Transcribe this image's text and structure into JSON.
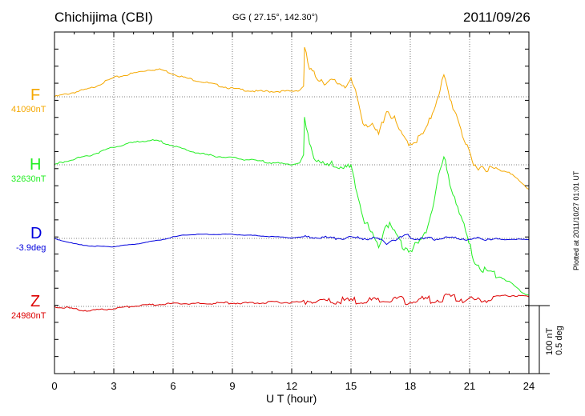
{
  "header": {
    "station": "Chichijima (CBI)",
    "coords": "GG ( 27.15°, 142.30°)",
    "date": "2011/09/26"
  },
  "scale": {
    "nt": "100 nT",
    "deg": "0.5 deg"
  },
  "plotted": "Plotted at 2011/10/27 01:01 UT",
  "chart_data": {
    "type": "line",
    "xlabel": "U T (hour)",
    "xlim": [
      0,
      24
    ],
    "xticks": [
      "0",
      "3",
      "6",
      "9",
      "12",
      "15",
      "18",
      "21",
      "24"
    ],
    "grid": true,
    "series": [
      {
        "name": "F",
        "baseline": "41090nT",
        "color": "#f5a800",
        "x": [
          0,
          0.6,
          1.2,
          1.8,
          2.4,
          3,
          3.6,
          4.2,
          4.8,
          5.4,
          6,
          6.6,
          7.2,
          7.8,
          8.4,
          9,
          9.6,
          10.2,
          10.8,
          11.4,
          12,
          12.4,
          12.6,
          12.65,
          12.9,
          13.2,
          13.5,
          13.8,
          14.1,
          14.4,
          14.7,
          15,
          15.3,
          15.6,
          16,
          16.4,
          16.8,
          17.2,
          17.6,
          18,
          18.4,
          18.8,
          19.2,
          19.5,
          19.7,
          20,
          20.4,
          20.8,
          21.2,
          21.6,
          22,
          22.5,
          23,
          23.5,
          24
        ],
        "values": [
          0,
          4,
          8,
          12,
          20,
          28,
          32,
          36,
          40,
          40,
          34,
          28,
          24,
          20,
          16,
          12,
          10,
          8,
          8,
          8,
          8,
          10,
          16,
          70,
          40,
          30,
          26,
          20,
          22,
          20,
          18,
          22,
          0,
          -36,
          -42,
          -56,
          -18,
          -34,
          -60,
          -68,
          -62,
          -50,
          -16,
          12,
          30,
          -4,
          -30,
          -70,
          -102,
          -102,
          -106,
          -108,
          -110,
          -124,
          -136
        ]
      },
      {
        "name": "H",
        "baseline": "32630nT",
        "color": "#22ee22",
        "x": [
          0,
          0.6,
          1.2,
          1.8,
          2.4,
          3,
          3.6,
          4.2,
          4.8,
          5.4,
          6,
          6.6,
          7.2,
          7.8,
          8.4,
          9,
          9.6,
          10.2,
          10.8,
          11.4,
          12,
          12.4,
          12.6,
          12.65,
          12.9,
          13.2,
          13.5,
          13.8,
          14.1,
          14.4,
          14.7,
          15,
          15.3,
          15.6,
          16,
          16.4,
          16.8,
          17.2,
          17.6,
          18,
          18.4,
          18.8,
          19.2,
          19.5,
          19.7,
          20,
          20.4,
          20.8,
          21.2,
          21.6,
          22,
          22.5,
          23,
          23.5,
          24
        ],
        "values": [
          0,
          6,
          10,
          14,
          20,
          26,
          30,
          34,
          36,
          34,
          28,
          22,
          18,
          14,
          12,
          10,
          8,
          6,
          4,
          2,
          0,
          4,
          10,
          66,
          30,
          10,
          4,
          -2,
          0,
          -2,
          -6,
          -4,
          -36,
          -76,
          -100,
          -120,
          -84,
          -100,
          -118,
          -126,
          -116,
          -100,
          -50,
          -10,
          10,
          -26,
          -60,
          -100,
          -138,
          -152,
          -158,
          -164,
          -172,
          -184,
          -192
        ]
      },
      {
        "name": "D",
        "baseline": "-3.9deg",
        "color": "#0000dd",
        "x": [
          0,
          0.6,
          1.2,
          1.8,
          2.4,
          3,
          3.6,
          4.2,
          4.8,
          5.4,
          6,
          6.6,
          7.2,
          7.8,
          8.4,
          9,
          9.6,
          10.2,
          10.8,
          11.4,
          12,
          12.6,
          13.2,
          13.8,
          14.4,
          15,
          15.6,
          16.2,
          16.6,
          16.8,
          17,
          17.4,
          17.8,
          18.2,
          18.6,
          19,
          19.4,
          19.8,
          20.2,
          20.6,
          21,
          21.4,
          22,
          22.6,
          23.2,
          24
        ],
        "values": [
          0,
          -5,
          -9,
          -11,
          -12,
          -12,
          -10,
          -8,
          -5,
          -2,
          2,
          5,
          6,
          6,
          6,
          6,
          5,
          4,
          3,
          2,
          1,
          2,
          2,
          1,
          0,
          1,
          0,
          0,
          -3,
          -8,
          -3,
          0,
          5,
          0,
          -1,
          0,
          -1,
          1,
          0,
          0,
          -3,
          0,
          -1,
          -2,
          -1,
          -2
        ]
      },
      {
        "name": "Z",
        "baseline": "24980nT",
        "color": "#dd0000",
        "x": [
          0,
          0.6,
          1.2,
          1.8,
          2.4,
          3,
          3.6,
          4.2,
          4.8,
          5.4,
          6,
          6.6,
          7.2,
          7.8,
          8.4,
          9,
          9.6,
          10.2,
          10.8,
          11.4,
          12,
          12.6,
          12.8,
          13.2,
          13.8,
          14.4,
          15,
          15.6,
          16.2,
          16.8,
          17.4,
          18,
          18.6,
          19.2,
          19.8,
          20.4,
          21,
          21.6,
          22.2,
          22.8,
          23.4,
          24
        ],
        "values": [
          0,
          -2,
          -5,
          -6,
          -5,
          -3,
          -1,
          1,
          2,
          3,
          4,
          4,
          4,
          4,
          5,
          5,
          5,
          5,
          6,
          6,
          6,
          6,
          9,
          7,
          7,
          8,
          8,
          8,
          8,
          8,
          9,
          8,
          10,
          10,
          13,
          12,
          8,
          10,
          14,
          16,
          16,
          14
        ]
      }
    ]
  }
}
